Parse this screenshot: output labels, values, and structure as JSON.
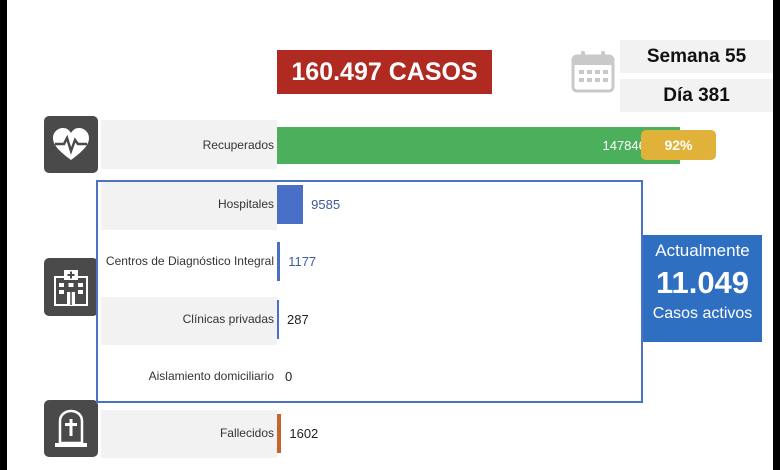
{
  "header": {
    "total_cases": "160.497 CASOS",
    "week": "Semana 55",
    "day": "Día 381"
  },
  "icons": {
    "calendar": "calendar-icon",
    "recovered": "heart-pulse-icon",
    "hospital": "hospital-icon",
    "deceased": "tombstone-icon"
  },
  "colors": {
    "total_bg": "#b02a22",
    "recovered": "#4caf5c",
    "percent_badge": "#e0b23a",
    "hospital_frame": "#4c72c4",
    "active_box": "#2f6fc2",
    "fallecidos": "#c8642a"
  },
  "recovered_percent": "92%",
  "active": {
    "title": "Actualmente",
    "value": "11.049",
    "subtitle": "Casos activos"
  },
  "chart_data": {
    "type": "bar",
    "orientation": "horizontal",
    "categories": [
      "Recuperados",
      "Hospitales",
      "Centros de Diagnóstico Integral",
      "Clínicas privadas",
      "Aislamiento domiciliario",
      "Fallecidos"
    ],
    "values": [
      147846,
      9585,
      1177,
      287,
      0,
      1602
    ],
    "value_labels": [
      "147846",
      "9585",
      "1177",
      "287",
      "0",
      "1602"
    ],
    "colors": [
      "#4caf5c",
      "#4a6fc6",
      "#4a6fc6",
      "#4a6fc6",
      "#4a6fc6",
      "#c8642a"
    ],
    "label_colors": [
      "#ffffff",
      "#3d5a9c",
      "#3d5a9c",
      "#222222",
      "#222222",
      "#222222"
    ],
    "xlim": [
      0,
      160497
    ]
  }
}
